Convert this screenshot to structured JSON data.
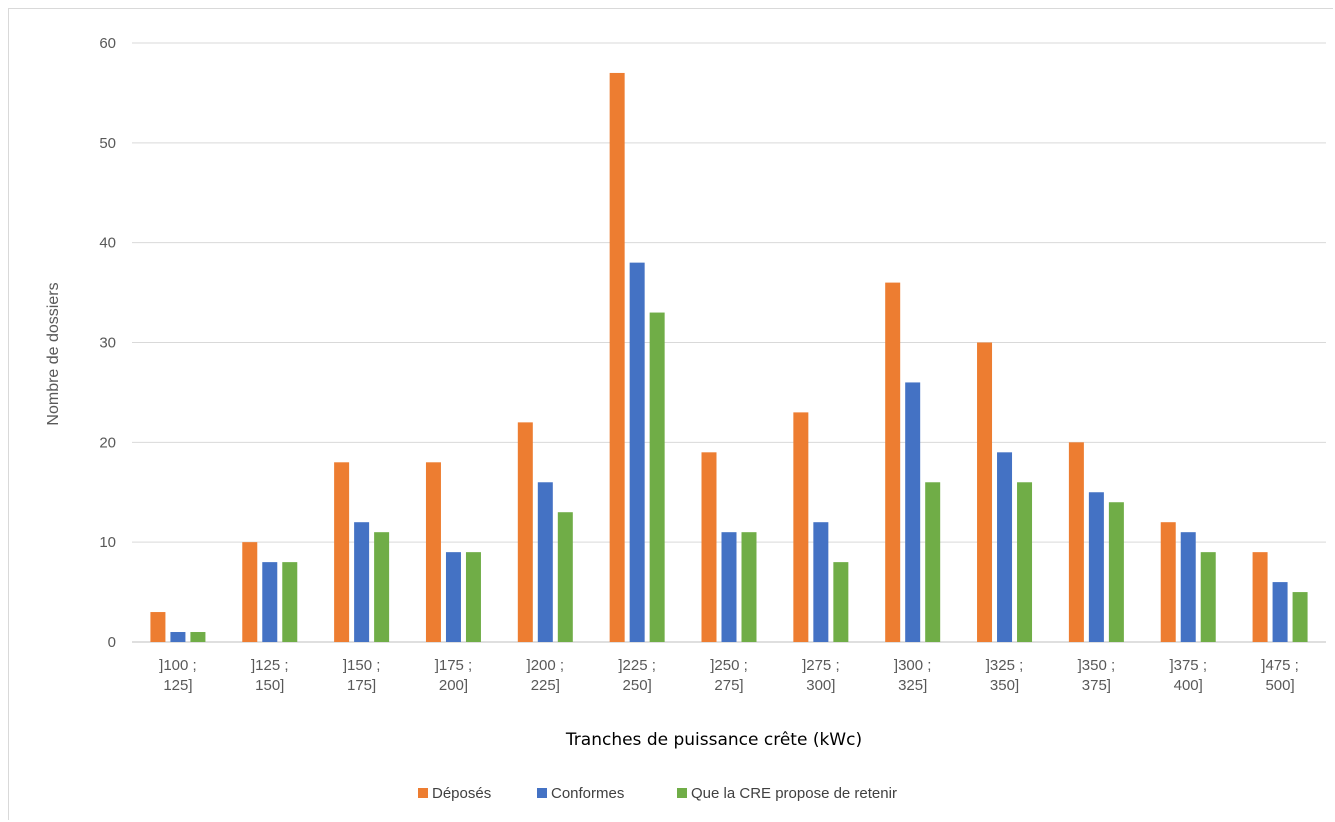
{
  "chart_data": {
    "type": "bar",
    "xlabel": "Tranches de puissance crête (kWc)",
    "ylabel": "Nombre de dossiers",
    "ylim": [
      0,
      60
    ],
    "yticks": [
      0,
      10,
      20,
      30,
      40,
      50,
      60
    ],
    "grid": true,
    "legend_position": "bottom",
    "categories": [
      [
        "]100 ;",
        "125]"
      ],
      [
        "]125 ;",
        "150]"
      ],
      [
        "]150 ;",
        "175]"
      ],
      [
        "]175 ;",
        "200]"
      ],
      [
        "]200 ;",
        "225]"
      ],
      [
        "]225 ;",
        "250]"
      ],
      [
        "]250 ;",
        "275]"
      ],
      [
        "]275 ;",
        "300]"
      ],
      [
        "]300 ;",
        "325]"
      ],
      [
        "]325 ;",
        "350]"
      ],
      [
        "]350 ;",
        "375]"
      ],
      [
        "]375 ;",
        "400]"
      ],
      [
        "]475 ;",
        "500]"
      ]
    ],
    "series": [
      {
        "name": "Déposés",
        "color": "#ED7D31",
        "values": [
          3,
          10,
          18,
          18,
          22,
          57,
          19,
          23,
          36,
          30,
          20,
          12,
          9
        ]
      },
      {
        "name": "Conformes",
        "color": "#4472C4",
        "values": [
          1,
          8,
          12,
          9,
          16,
          38,
          11,
          12,
          26,
          19,
          15,
          11,
          6
        ]
      },
      {
        "name": "Que la CRE propose de retenir",
        "color": "#70AD47",
        "values": [
          1,
          8,
          11,
          9,
          13,
          33,
          11,
          8,
          16,
          16,
          14,
          9,
          5
        ]
      }
    ],
    "colors": {
      "gridline": "#d9d9d9",
      "axis": "#bfbfbf"
    }
  }
}
